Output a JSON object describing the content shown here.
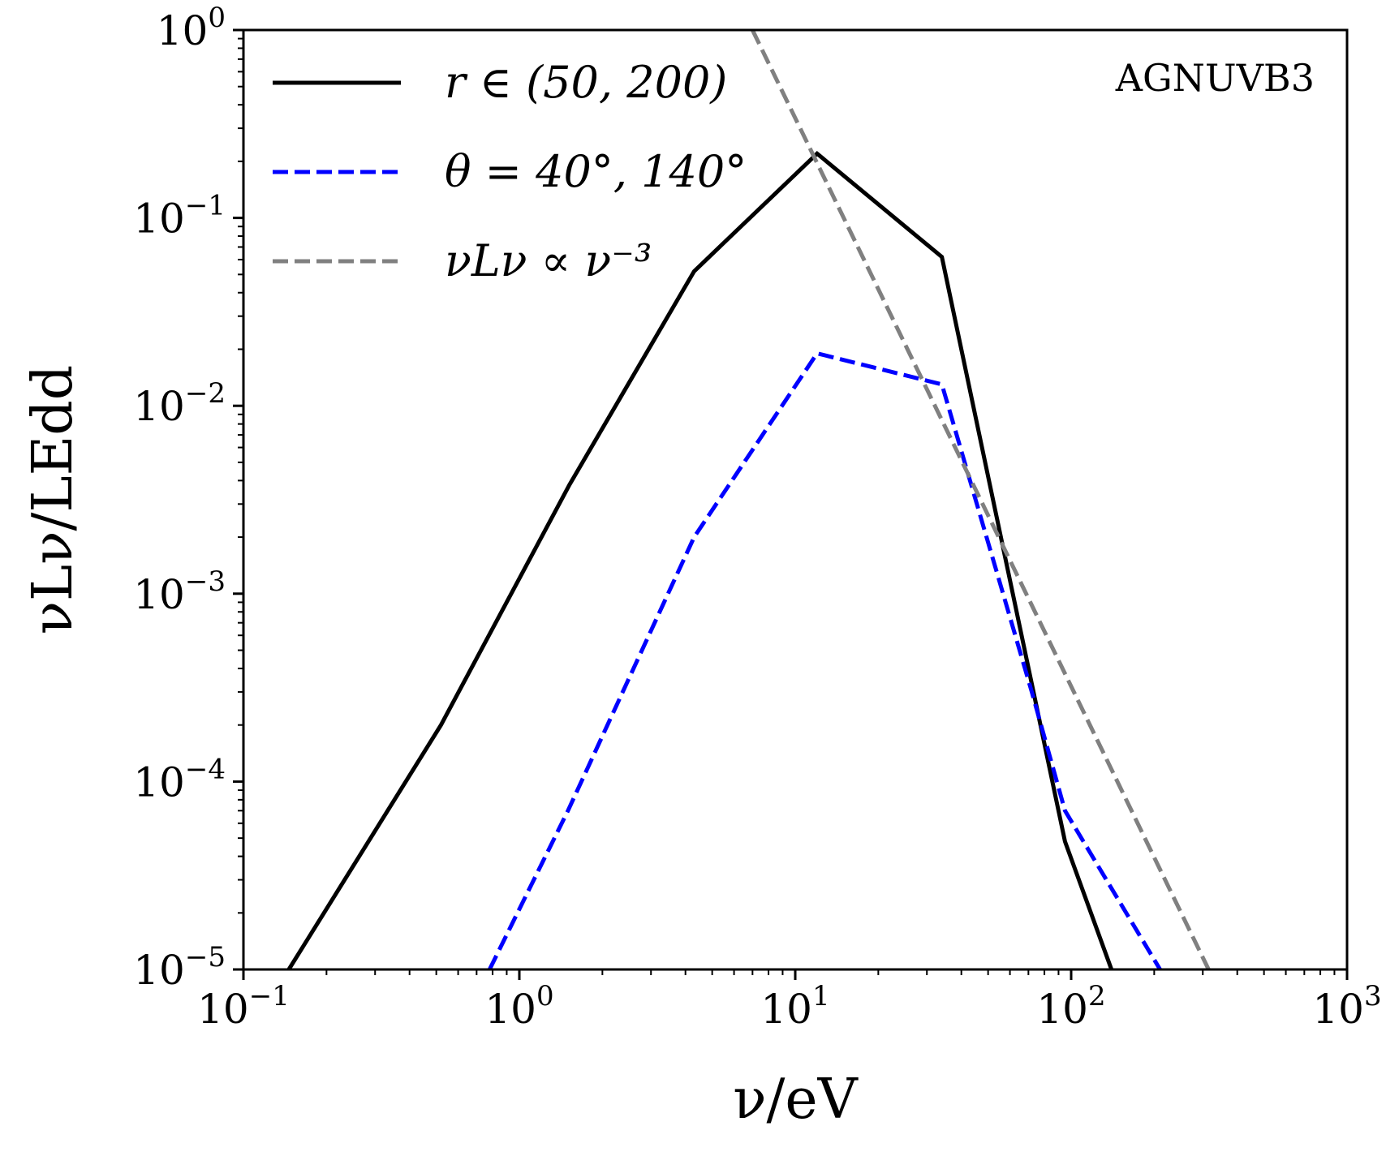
{
  "chart_data": {
    "type": "line",
    "annotation": "AGNUVB3",
    "xlabel": "ν/eV",
    "ylabel": "νLν/LEdd",
    "xscale": "log",
    "yscale": "log",
    "xlim": [
      0.1,
      1000
    ],
    "ylim": [
      1e-05,
      1
    ],
    "legend_position": "top-left",
    "grid": false,
    "x_ticks": [
      {
        "value": 0.1,
        "base": "10",
        "exp": "−1"
      },
      {
        "value": 1,
        "base": "10",
        "exp": "0"
      },
      {
        "value": 10,
        "base": "10",
        "exp": "1"
      },
      {
        "value": 100,
        "base": "10",
        "exp": "2"
      },
      {
        "value": 1000,
        "base": "10",
        "exp": "3"
      }
    ],
    "y_ticks": [
      {
        "value": 1e-05,
        "base": "10",
        "exp": "−5"
      },
      {
        "value": 0.0001,
        "base": "10",
        "exp": "−4"
      },
      {
        "value": 0.001,
        "base": "10",
        "exp": "−3"
      },
      {
        "value": 0.01,
        "base": "10",
        "exp": "−2"
      },
      {
        "value": 0.1,
        "base": "10",
        "exp": "−1"
      },
      {
        "value": 1,
        "base": "10",
        "exp": "0"
      }
    ],
    "series": [
      {
        "name": "r ∈ (50, 200)",
        "color": "#000000",
        "dash": "solid",
        "x": [
          0.146,
          0.52,
          1.52,
          4.3,
          12.0,
          34.0,
          95.0,
          140.0
        ],
        "y": [
          1e-05,
          0.0002,
          0.0038,
          0.052,
          0.22,
          0.062,
          4.8e-05,
          1e-05
        ]
      },
      {
        "name": "θ = 40°, 140°",
        "color": "#0000ff",
        "dash": "dashed",
        "x": [
          0.78,
          1.5,
          4.3,
          12.0,
          34.0,
          72.0,
          95.0,
          210.0
        ],
        "y": [
          1e-05,
          7e-05,
          0.002,
          0.019,
          0.013,
          0.0003,
          7e-05,
          1e-05
        ]
      },
      {
        "name": "νLν ∝ ν⁻³",
        "color": "#808080",
        "dash": "dashed",
        "x": [
          7.0,
          315.0
        ],
        "y": [
          1.0,
          1e-05
        ]
      }
    ]
  }
}
